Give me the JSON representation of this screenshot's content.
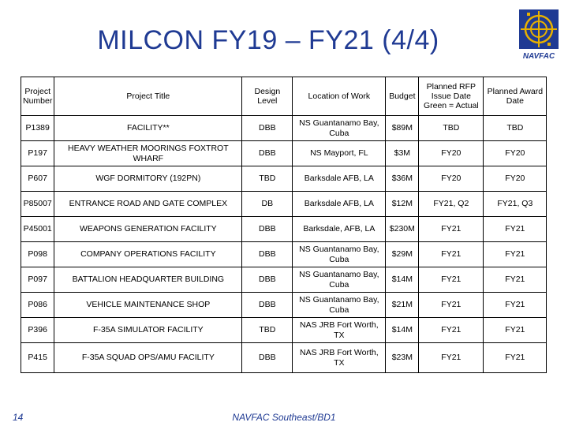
{
  "title": "MILCON FY19 – FY21  (4/4)",
  "logo_label": "NAVFAC",
  "colors": {
    "title": "#1f3a93",
    "logo_blue": "#1f3a93",
    "logo_gold": "#e8b100"
  },
  "table": {
    "headers": [
      "Project Number",
      "Project Title",
      "Design Level",
      "Location of Work",
      "Budget",
      "Planned RFP Issue Date Green = Actual",
      "Planned Award Date"
    ],
    "rows": [
      [
        "P1389",
        "FACILITY**",
        "DBB",
        "NS Guantanamo Bay, Cuba",
        "$89M",
        "TBD",
        "TBD"
      ],
      [
        "P197",
        "HEAVY WEATHER MOORINGS FOXTROT WHARF",
        "DBB",
        "NS Mayport, FL",
        "$3M",
        "FY20",
        "FY20"
      ],
      [
        "P607",
        "WGF DORMITORY (192PN)",
        "TBD",
        "Barksdale AFB, LA",
        "$36M",
        "FY20",
        "FY20"
      ],
      [
        "P85007",
        "ENTRANCE ROAD AND GATE COMPLEX",
        "DB",
        "Barksdale AFB, LA",
        "$12M",
        "FY21, Q2",
        "FY21, Q3"
      ],
      [
        "P45001",
        "WEAPONS GENERATION FACILITY",
        "DBB",
        "Barksdale, AFB, LA",
        "$230M",
        "FY21",
        "FY21"
      ],
      [
        "P098",
        "COMPANY OPERATIONS FACILITY",
        "DBB",
        "NS Guantanamo Bay, Cuba",
        "$29M",
        "FY21",
        "FY21"
      ],
      [
        "P097",
        "BATTALION HEADQUARTER BUILDING",
        "DBB",
        "NS Guantanamo Bay, Cuba",
        "$14M",
        "FY21",
        "FY21"
      ],
      [
        "P086",
        "VEHICLE MAINTENANCE SHOP",
        "DBB",
        "NS Guantanamo Bay, Cuba",
        "$21M",
        "FY21",
        "FY21"
      ],
      [
        "P396",
        "F-35A SIMULATOR FACILITY",
        "TBD",
        "NAS JRB Fort Worth, TX",
        "$14M",
        "FY21",
        "FY21"
      ],
      [
        "P415",
        "F-35A SQUAD OPS/AMU FACILITY",
        "DBB",
        "NAS JRB Fort Worth, TX",
        "$23M",
        "FY21",
        "FY21"
      ]
    ]
  },
  "footer": {
    "page_number": "14",
    "source": "NAVFAC Southeast/BD1"
  }
}
